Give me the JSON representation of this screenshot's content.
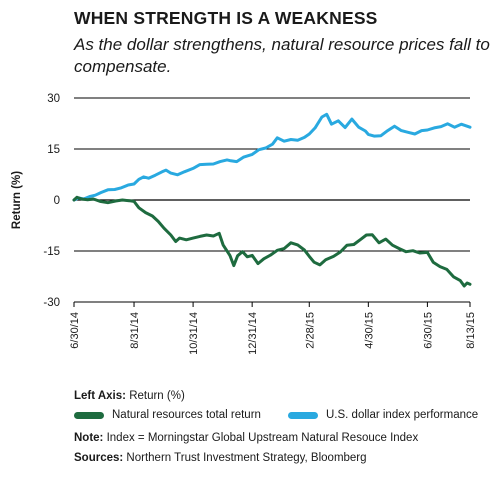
{
  "header": {
    "title": "WHEN STRENGTH IS A WEAKNESS",
    "subtitle": "As the dollar strengthens, natural resource prices fall to compensate."
  },
  "colors": {
    "natural_resources": "#1e6b3f",
    "usd_index": "#29a9e0"
  },
  "chart_data": {
    "type": "line",
    "ylabel": "Return (%)",
    "xlabel": "",
    "ylim": [
      -30,
      30
    ],
    "yticks": [
      30,
      15,
      0,
      -15,
      -30
    ],
    "ytick_labels": [
      "30",
      "15",
      "0",
      "-15",
      "-30"
    ],
    "xticks": [
      "6/30/14",
      "8/31/14",
      "10/31/14",
      "12/31/14",
      "2/28/15",
      "4/30/15",
      "6/30/15",
      "8/13/15"
    ],
    "x_start": "2014-06-30",
    "x_end": "2015-08-13",
    "grid": "horizontal",
    "series": [
      {
        "name": "U.S. dollar index performance",
        "points": [
          [
            "2014-06-30",
            0
          ],
          [
            "2014-07-05",
            0.6
          ],
          [
            "2014-07-10",
            0.3
          ],
          [
            "2014-07-16",
            1
          ],
          [
            "2014-07-22",
            1.4
          ],
          [
            "2014-07-28",
            2.2
          ],
          [
            "2014-08-04",
            3
          ],
          [
            "2014-08-11",
            3.1
          ],
          [
            "2014-08-18",
            3.6
          ],
          [
            "2014-08-25",
            4.4
          ],
          [
            "2014-08-31",
            4.7
          ],
          [
            "2014-09-05",
            6.1
          ],
          [
            "2014-09-10",
            6.8
          ],
          [
            "2014-09-15",
            6.4
          ],
          [
            "2014-09-22",
            7.3
          ],
          [
            "2014-09-29",
            8.3
          ],
          [
            "2014-10-03",
            8.8
          ],
          [
            "2014-10-08",
            7.9
          ],
          [
            "2014-10-15",
            7.4
          ],
          [
            "2014-10-22",
            8.3
          ],
          [
            "2014-10-31",
            9.3
          ],
          [
            "2014-11-07",
            10.4
          ],
          [
            "2014-11-14",
            10.5
          ],
          [
            "2014-11-21",
            10.6
          ],
          [
            "2014-11-28",
            11.3
          ],
          [
            "2014-12-05",
            11.8
          ],
          [
            "2014-12-08",
            11.6
          ],
          [
            "2014-12-15",
            11.3
          ],
          [
            "2014-12-22",
            12.6
          ],
          [
            "2014-12-31",
            13.4
          ],
          [
            "2015-01-07",
            14.8
          ],
          [
            "2015-01-14",
            15.3
          ],
          [
            "2015-01-21",
            16.4
          ],
          [
            "2015-01-26",
            18.3
          ],
          [
            "2015-02-02",
            17.3
          ],
          [
            "2015-02-09",
            17.8
          ],
          [
            "2015-02-16",
            17.6
          ],
          [
            "2015-02-23",
            18.4
          ],
          [
            "2015-02-28",
            19.4
          ],
          [
            "2015-03-06",
            21.2
          ],
          [
            "2015-03-13",
            24.4
          ],
          [
            "2015-03-18",
            25.2
          ],
          [
            "2015-03-23",
            22.3
          ],
          [
            "2015-03-30",
            23.3
          ],
          [
            "2015-04-06",
            21.3
          ],
          [
            "2015-04-13",
            23.8
          ],
          [
            "2015-04-20",
            21.4
          ],
          [
            "2015-04-27",
            20.3
          ],
          [
            "2015-04-30",
            19.3
          ],
          [
            "2015-05-06",
            18.8
          ],
          [
            "2015-05-13",
            18.9
          ],
          [
            "2015-05-20",
            20.4
          ],
          [
            "2015-05-27",
            21.7
          ],
          [
            "2015-06-03",
            20.4
          ],
          [
            "2015-06-10",
            19.9
          ],
          [
            "2015-06-17",
            19.4
          ],
          [
            "2015-06-24",
            20.4
          ],
          [
            "2015-06-30",
            20.6
          ],
          [
            "2015-07-07",
            21.2
          ],
          [
            "2015-07-14",
            21.6
          ],
          [
            "2015-07-21",
            22.4
          ],
          [
            "2015-07-28",
            21.4
          ],
          [
            "2015-08-04",
            22.3
          ],
          [
            "2015-08-10",
            21.7
          ],
          [
            "2015-08-13",
            21.4
          ]
        ]
      },
      {
        "name": "Natural resources total return",
        "points": [
          [
            "2014-06-30",
            0
          ],
          [
            "2014-07-03",
            0.8
          ],
          [
            "2014-07-08",
            0.3
          ],
          [
            "2014-07-14",
            0.1
          ],
          [
            "2014-07-20",
            0.3
          ],
          [
            "2014-07-27",
            -0.4
          ],
          [
            "2014-08-04",
            -0.8
          ],
          [
            "2014-08-12",
            -0.3
          ],
          [
            "2014-08-19",
            0
          ],
          [
            "2014-08-26",
            -0.2
          ],
          [
            "2014-08-31",
            -0.4
          ],
          [
            "2014-09-05",
            -2.3
          ],
          [
            "2014-09-12",
            -3.7
          ],
          [
            "2014-09-19",
            -4.7
          ],
          [
            "2014-09-25",
            -6.3
          ],
          [
            "2014-10-01",
            -8.3
          ],
          [
            "2014-10-08",
            -10.3
          ],
          [
            "2014-10-13",
            -12.2
          ],
          [
            "2014-10-17",
            -11.2
          ],
          [
            "2014-10-24",
            -11.7
          ],
          [
            "2014-10-31",
            -11.2
          ],
          [
            "2014-11-07",
            -10.7
          ],
          [
            "2014-11-14",
            -10.3
          ],
          [
            "2014-11-21",
            -10.6
          ],
          [
            "2014-11-27",
            -9.8
          ],
          [
            "2014-12-01",
            -13.2
          ],
          [
            "2014-12-08",
            -16.3
          ],
          [
            "2014-12-12",
            -19.3
          ],
          [
            "2014-12-16",
            -16.4
          ],
          [
            "2014-12-21",
            -15.2
          ],
          [
            "2014-12-26",
            -16.7
          ],
          [
            "2014-12-31",
            -16.3
          ],
          [
            "2015-01-06",
            -18.7
          ],
          [
            "2015-01-12",
            -17.3
          ],
          [
            "2015-01-19",
            -16.2
          ],
          [
            "2015-01-26",
            -14.8
          ],
          [
            "2015-02-02",
            -14.3
          ],
          [
            "2015-02-09",
            -12.6
          ],
          [
            "2015-02-16",
            -13.2
          ],
          [
            "2015-02-23",
            -14.7
          ],
          [
            "2015-02-28",
            -16.6
          ],
          [
            "2015-03-05",
            -18.3
          ],
          [
            "2015-03-11",
            -19.1
          ],
          [
            "2015-03-17",
            -17.6
          ],
          [
            "2015-03-25",
            -16.6
          ],
          [
            "2015-04-01",
            -15.3
          ],
          [
            "2015-04-08",
            -13.3
          ],
          [
            "2015-04-15",
            -13.1
          ],
          [
            "2015-04-22",
            -11.6
          ],
          [
            "2015-04-28",
            -10.3
          ],
          [
            "2015-05-04",
            -10.2
          ],
          [
            "2015-05-11",
            -12.6
          ],
          [
            "2015-05-18",
            -11.5
          ],
          [
            "2015-05-25",
            -13.3
          ],
          [
            "2015-06-01",
            -14.3
          ],
          [
            "2015-06-08",
            -15.2
          ],
          [
            "2015-06-15",
            -14.9
          ],
          [
            "2015-06-22",
            -15.6
          ],
          [
            "2015-06-30",
            -15.4
          ],
          [
            "2015-07-06",
            -18.3
          ],
          [
            "2015-07-13",
            -19.6
          ],
          [
            "2015-07-20",
            -20.4
          ],
          [
            "2015-07-27",
            -22.6
          ],
          [
            "2015-08-03",
            -23.7
          ],
          [
            "2015-08-07",
            -25.3
          ],
          [
            "2015-08-10",
            -24.4
          ],
          [
            "2015-08-13",
            -24.8
          ]
        ]
      }
    ]
  },
  "footer": {
    "left_axis_label": "Left Axis:",
    "left_axis_value": "Return (%)",
    "legend_natural": "Natural resources total return",
    "legend_usd": "U.S. dollar index performance",
    "note_label": "Note:",
    "note_text": "Index = Morningstar Global Upstream Natural Resouce Index",
    "sources_label": "Sources:",
    "sources_text": "Northern Trust Investment Strategy, Bloomberg"
  }
}
